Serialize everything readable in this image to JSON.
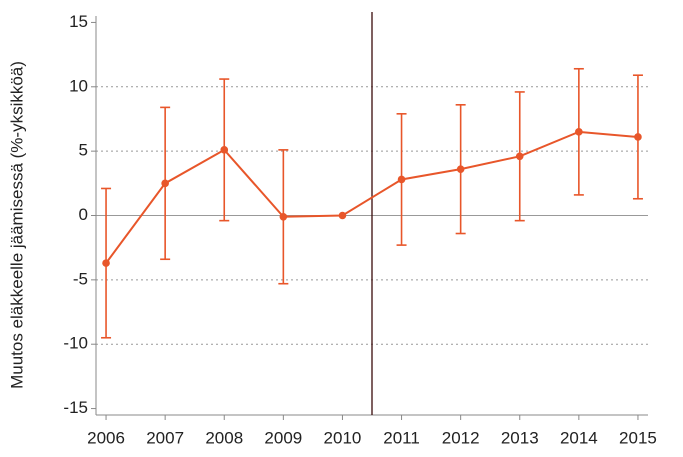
{
  "chart_data": {
    "type": "line",
    "y_label": "Muutos eläkkeelle jäämisessä (%-yksikköä)",
    "x": [
      2006,
      2007,
      2008,
      2009,
      2010,
      2011,
      2012,
      2013,
      2014,
      2015
    ],
    "series": [
      {
        "color": "#e8562a",
        "values": [
          -3.7,
          2.5,
          5.1,
          -0.1,
          0,
          2.8,
          3.6,
          4.6,
          6.5,
          6.1
        ],
        "errors": [
          5.8,
          5.9,
          5.5,
          5.2,
          0,
          5.1,
          5.0,
          5.0,
          4.9,
          4.8
        ]
      }
    ],
    "xlim": [
      2005.83,
      2015.17
    ],
    "xticks": [
      2006,
      2007,
      2008,
      2009,
      2010,
      2011,
      2012,
      2013,
      2014,
      2015
    ],
    "ylim": [
      -15.5,
      15.5
    ],
    "yticks": [
      -15,
      -10,
      -5,
      0,
      5,
      10,
      15
    ],
    "reference_line_x": 2010.5,
    "reference_line_color": "#3a0a0a",
    "grid": true
  }
}
